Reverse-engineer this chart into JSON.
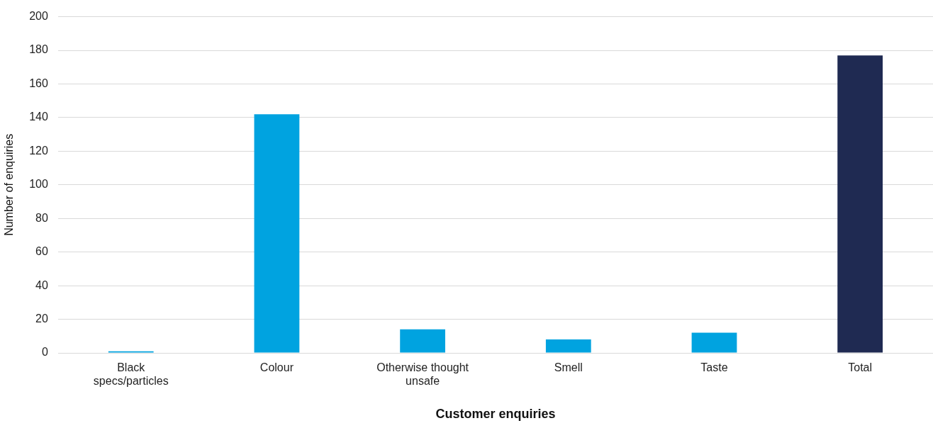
{
  "chart_data": {
    "type": "bar",
    "xlabel": "Customer enquiries",
    "ylabel": "Number of enquiries",
    "categories": [
      "Black specs/particles",
      "Colour",
      "Otherwise thought unsafe",
      "Smell",
      "Taste",
      "Total"
    ],
    "values": [
      1,
      142,
      14,
      8,
      12,
      177
    ],
    "colors": [
      "#00a3e0",
      "#00a3e0",
      "#00a3e0",
      "#00a3e0",
      "#00a3e0",
      "#1f2a52"
    ],
    "ylim": [
      0,
      200
    ],
    "yticks": [
      0,
      20,
      40,
      60,
      80,
      100,
      120,
      140,
      160,
      180,
      200
    ],
    "grid": "y",
    "legend": false
  }
}
